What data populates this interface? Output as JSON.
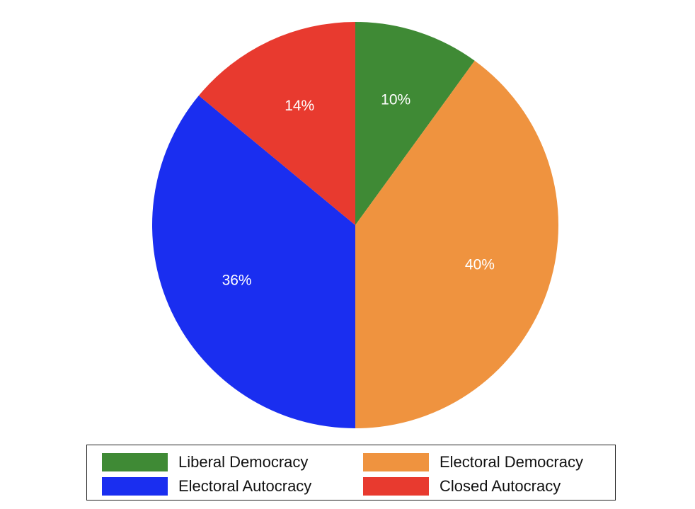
{
  "chart_data": {
    "type": "pie",
    "slices": [
      {
        "label": "Liberal Democracy",
        "value": 10,
        "display": "10%",
        "color": "#3f8a35"
      },
      {
        "label": "Electoral Democracy",
        "value": 40,
        "display": "40%",
        "color": "#ef933f"
      },
      {
        "label": "Electoral Autocracy",
        "value": 36,
        "display": "36%",
        "color": "#1a2ef0"
      },
      {
        "label": "Closed Autocracy",
        "value": 14,
        "display": "14%",
        "color": "#e83a2f"
      }
    ],
    "start_angle": "12 o'clock",
    "direction": "clockwise",
    "legend_position": "bottom",
    "legend_columns": 2,
    "title": ""
  }
}
